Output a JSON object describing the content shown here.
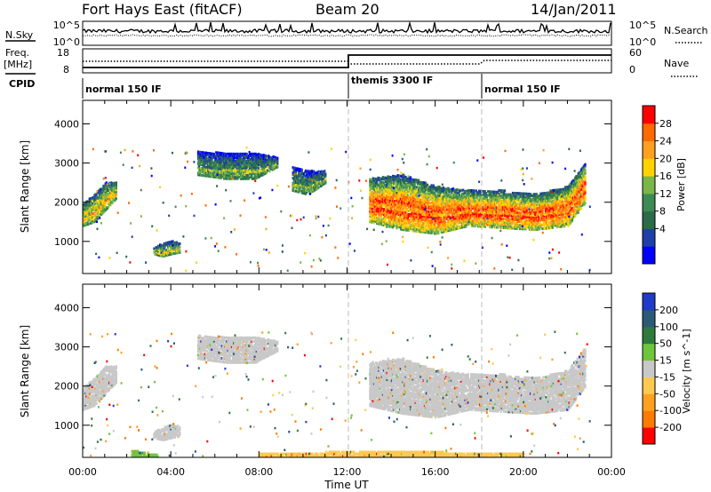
{
  "header": {
    "station": "Fort Hays East (fitACF)",
    "beam": "Beam 20",
    "date": "14/Jan/2011"
  },
  "top_panels": {
    "nsky_label": "N.Sky",
    "nsky_ticks": [
      "10^5",
      "10^0"
    ],
    "nsearch_label": "N.Search",
    "nsearch_ticks": [
      "10^5",
      "10^0"
    ],
    "freq_label": "Freq.",
    "freq_unit": "[MHz]",
    "freq_ticks": [
      "18",
      "8"
    ],
    "nave_label": "Nave",
    "nave_ticks": [
      "60",
      "0"
    ],
    "cpid_label": "CPID",
    "cpid_segments": [
      {
        "label": "normal 150 IF",
        "start_hour": 0,
        "end_hour": 12
      },
      {
        "label": "themis 3300 IF",
        "start_hour": 12,
        "end_hour": 18
      },
      {
        "label": "normal 150 IF",
        "start_hour": 18,
        "end_hour": 24
      }
    ]
  },
  "axes": {
    "x_ticks": [
      "00:00",
      "04:00",
      "08:00",
      "12:00",
      "16:00",
      "20:00",
      "00:00"
    ],
    "x_label": "Time UT",
    "y_ticks": [
      "4000",
      "3000",
      "2000",
      "1000"
    ],
    "y_label": "Slant Range [km]"
  },
  "power_colorbar": {
    "label": "Power [dB]",
    "ticks": [
      "28",
      "24",
      "20",
      "16",
      "12",
      "8",
      "4"
    ],
    "colors": [
      "#0000ff",
      "#1e3fa8",
      "#2b6a4a",
      "#3d8a54",
      "#7ab648",
      "#ffd200",
      "#ffa020",
      "#ff6a00",
      "#ff0000"
    ]
  },
  "velocity_colorbar": {
    "label": "Velocity [m s^-1]",
    "ticks": [
      "200",
      "100",
      "50",
      "15",
      "-15",
      "-50",
      "-100",
      "-200"
    ],
    "colors": [
      "#1e3cc8",
      "#2d5a78",
      "#2e7a3e",
      "#6ec63c",
      "#c8c8c8",
      "#ffc850",
      "#ffa020",
      "#ff7a00",
      "#ff0000"
    ]
  },
  "chart_data": [
    {
      "type": "heatmap",
      "title": "Power",
      "x_unit": "hours UT",
      "y_unit": "km",
      "xlim": [
        0,
        24
      ],
      "ylim": [
        180,
        4600
      ],
      "colorbar_range": [
        0,
        30
      ],
      "regions": [
        {
          "x": [
            0.0,
            0.5,
            1.0,
            1.5
          ],
          "y_low": [
            1400,
            1500,
            1800,
            2100
          ],
          "y_high": [
            1950,
            2200,
            2500,
            2500
          ],
          "value": 14
        },
        {
          "x": [
            3.2,
            3.6,
            4.0,
            4.4
          ],
          "y_low": [
            680,
            620,
            680,
            720
          ],
          "y_high": [
            840,
            960,
            1020,
            960
          ],
          "value": 12
        },
        {
          "x": [
            5.2,
            6.5,
            7.8,
            8.8
          ],
          "y_low": [
            2700,
            2600,
            2600,
            2900
          ],
          "y_high": [
            3300,
            3250,
            3250,
            3150
          ],
          "value": 8
        },
        {
          "x": [
            9.5,
            10.2,
            11.0
          ],
          "y_low": [
            2300,
            2200,
            2500
          ],
          "y_high": [
            2900,
            2800,
            2800
          ],
          "value": 8
        },
        {
          "x": [
            13.0,
            14.5,
            16.0,
            17.5,
            19.0,
            20.5,
            22.0,
            22.8
          ],
          "y_low": [
            1500,
            1300,
            1200,
            1400,
            1350,
            1300,
            1400,
            2000
          ],
          "y_high": [
            2600,
            2700,
            2400,
            2300,
            2300,
            2200,
            2400,
            3000
          ],
          "value": 20
        }
      ]
    },
    {
      "type": "heatmap",
      "title": "Velocity",
      "x_unit": "hours UT",
      "y_unit": "km",
      "xlim": [
        0,
        24
      ],
      "ylim": [
        180,
        4600
      ],
      "colorbar_range": [
        -200,
        200
      ],
      "regions": [
        {
          "x": [
            0.0,
            0.5,
            1.0,
            1.5
          ],
          "y_low": [
            1400,
            1500,
            1800,
            2100
          ],
          "y_high": [
            1950,
            2200,
            2500,
            2500
          ],
          "value": 0
        },
        {
          "x": [
            3.2,
            3.6,
            4.0,
            4.4
          ],
          "y_low": [
            680,
            620,
            680,
            720
          ],
          "y_high": [
            840,
            960,
            1020,
            960
          ],
          "value": 0
        },
        {
          "x": [
            5.2,
            6.5,
            7.8,
            8.8
          ],
          "y_low": [
            2700,
            2600,
            2600,
            2900
          ],
          "y_high": [
            3300,
            3250,
            3250,
            3150
          ],
          "value": 0
        },
        {
          "x": [
            13.0,
            14.5,
            16.0,
            17.5,
            19.0,
            20.5,
            22.0,
            22.8
          ],
          "y_low": [
            1500,
            1300,
            1200,
            1400,
            1350,
            1300,
            1400,
            2000
          ],
          "y_high": [
            2600,
            2700,
            2400,
            2300,
            2300,
            2200,
            2400,
            3000
          ],
          "value": 0
        },
        {
          "x": [
            2.2,
            2.8,
            3.4
          ],
          "y_low": [
            200,
            200,
            200
          ],
          "y_high": [
            380,
            300,
            260
          ],
          "value": 30
        },
        {
          "x": [
            8.0,
            12.0,
            16.0,
            20.0
          ],
          "y_low": [
            180,
            180,
            180,
            180
          ],
          "y_high": [
            300,
            320,
            320,
            280
          ],
          "value": -60
        }
      ]
    }
  ]
}
